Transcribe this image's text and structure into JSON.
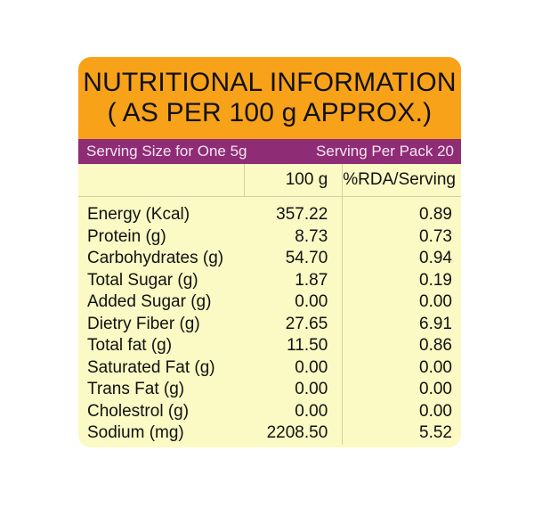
{
  "title_line1": "NUTRITIONAL INFORMATION",
  "title_line2": "( AS PER 100 g APPROX.)",
  "serving_size": "Serving Size for One 5g",
  "serving_per_pack": "Serving Per Pack 20",
  "columns": [
    "",
    "100 g",
    "%RDA/Serving"
  ],
  "rows": [
    {
      "name": "Energy (Kcal)",
      "per100g": "357.22",
      "rda": "0.89"
    },
    {
      "name": "Protein (g)",
      "per100g": "8.73",
      "rda": "0.73"
    },
    {
      "name": "Carbohydrates (g)",
      "per100g": "54.70",
      "rda": "0.94"
    },
    {
      "name": "Total Sugar (g)",
      "per100g": "1.87",
      "rda": "0.19"
    },
    {
      "name": "Added Sugar (g)",
      "per100g": "0.00",
      "rda": "0.00"
    },
    {
      "name": "Dietry Fiber (g)",
      "per100g": "27.65",
      "rda": "6.91"
    },
    {
      "name": "Total fat (g)",
      "per100g": "11.50",
      "rda": "0.86"
    },
    {
      "name": "Saturated Fat (g)",
      "per100g": "0.00",
      "rda": "0.00"
    },
    {
      "name": "Trans Fat (g)",
      "per100g": "0.00",
      "rda": "0.00"
    },
    {
      "name": "Cholestrol (g)",
      "per100g": "0.00",
      "rda": "0.00"
    },
    {
      "name": "Sodium (mg)",
      "per100g": "2208.50",
      "rda": "5.52"
    }
  ],
  "colors": {
    "header": "#f8a21a",
    "band": "#8f2c76",
    "body": "#fbf9c4"
  }
}
